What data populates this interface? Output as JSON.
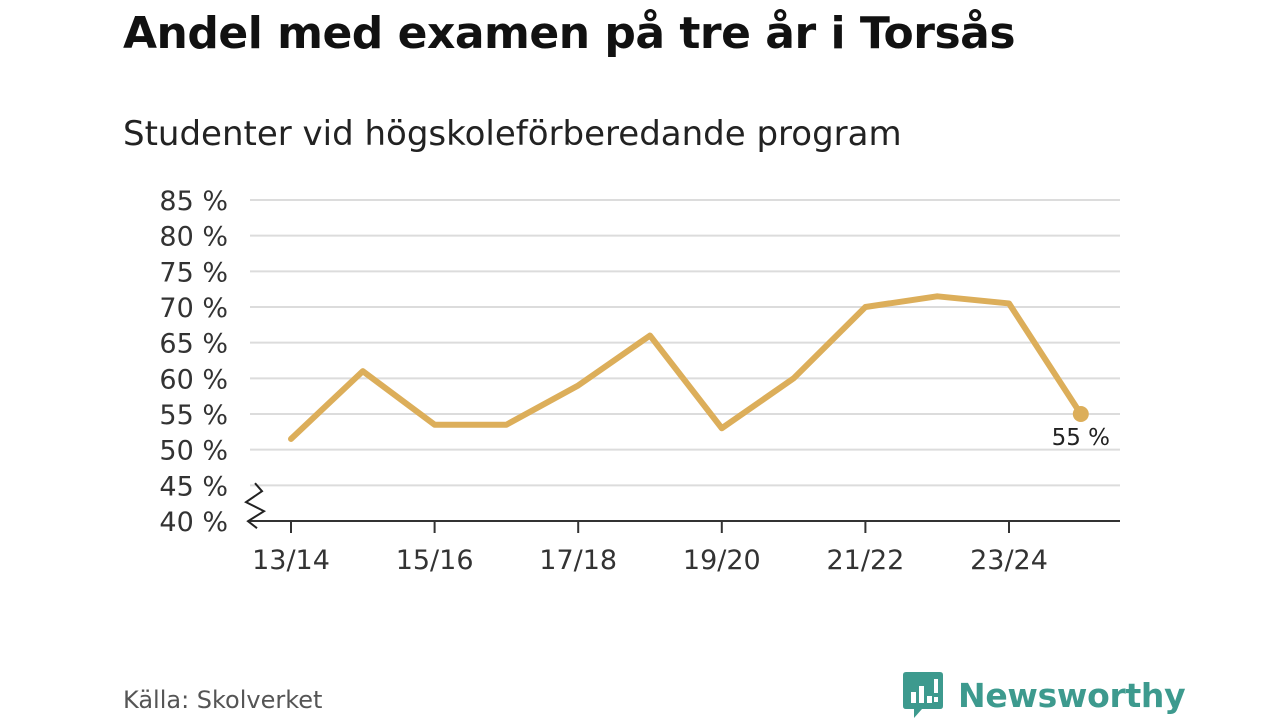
{
  "title": "Andel med examen på tre år i Torsås",
  "subtitle": "Studenter vid högskoleförberedande program",
  "source": "Källa: Skolverket",
  "brand": {
    "name": "Newsworthy",
    "icon": "newsworthy-logo-icon",
    "color": "#3d9a8e"
  },
  "chart_data": {
    "type": "line",
    "title": "Andel med examen på tre år i Torsås",
    "subtitle": "Studenter vid högskoleförberedande program",
    "x": [
      "13/14",
      "14/15",
      "15/16",
      "16/17",
      "17/18",
      "18/19",
      "19/20",
      "20/21",
      "21/22",
      "22/23",
      "23/24",
      "24/25"
    ],
    "x_tick_labels": [
      "13/14",
      "15/16",
      "17/18",
      "19/20",
      "21/22",
      "23/24"
    ],
    "series": [
      {
        "values": [
          51.5,
          61,
          53.5,
          53.5,
          59,
          66,
          53,
          60,
          70,
          71.5,
          70.5,
          55
        ],
        "color": "#dcae5a"
      }
    ],
    "y_tick_labels": [
      "40 %",
      "45 %",
      "50 %",
      "55 %",
      "60 %",
      "65 %",
      "70 %",
      "75 %",
      "80 %",
      "85 %"
    ],
    "y_ticks": [
      40,
      45,
      50,
      55,
      60,
      65,
      70,
      75,
      80,
      85
    ],
    "ylim": [
      40,
      85
    ],
    "y_axis_break": true,
    "end_label": "55 %",
    "grid": true
  }
}
